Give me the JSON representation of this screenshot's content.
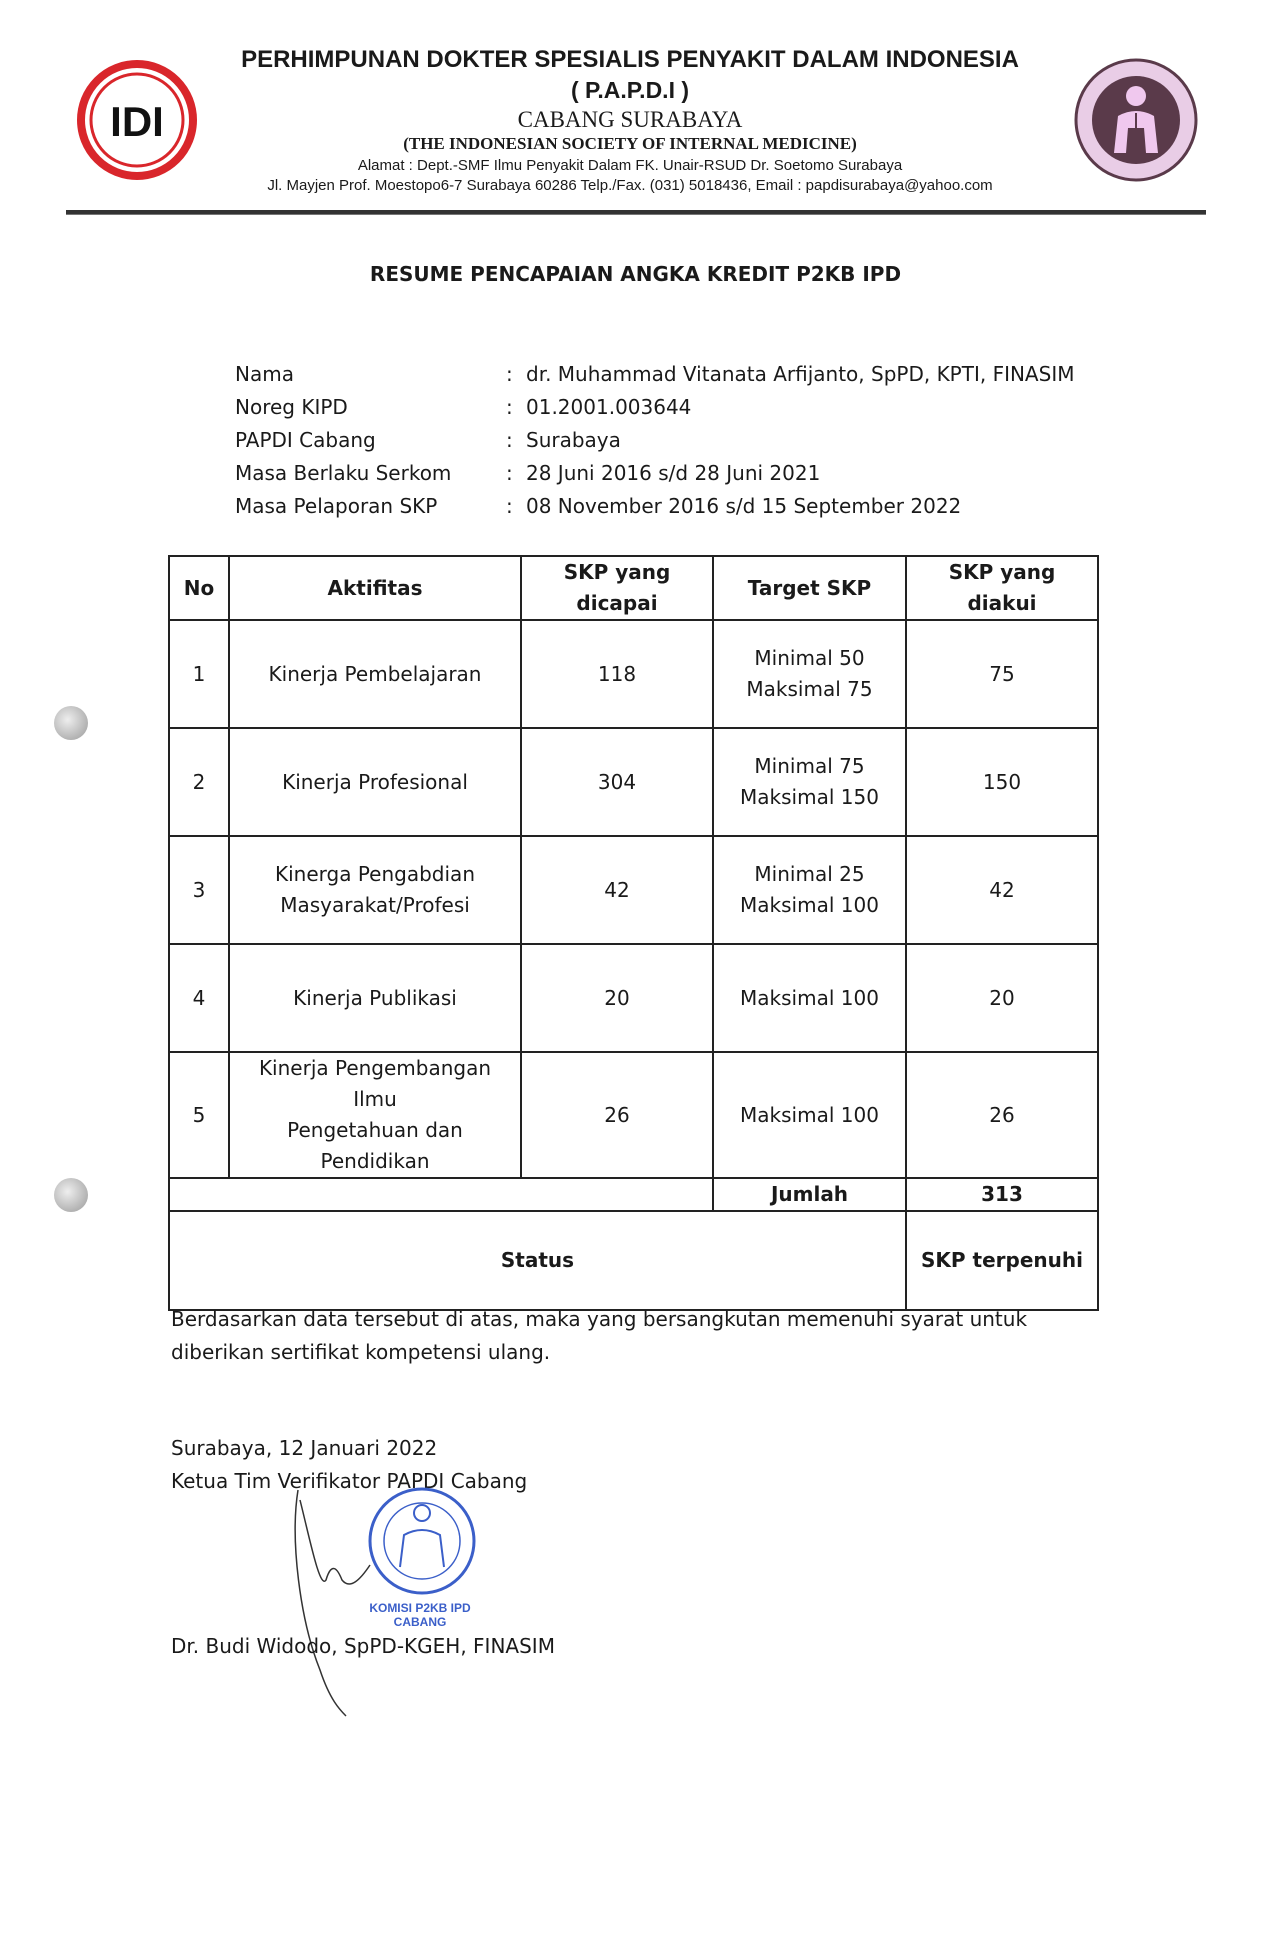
{
  "letterhead": {
    "org_name": "PERHIMPUNAN DOKTER SPESIALIS PENYAKIT DALAM INDONESIA",
    "abbreviation": "( P.A.P.D.I )",
    "branch": "CABANG SURABAYA",
    "english_name": "(THE INDONESIAN SOCIETY OF INTERNAL MEDICINE)",
    "address_line1": "Alamat : Dept.-SMF Ilmu Penyakit Dalam FK. Unair-RSUD Dr. Soetomo Surabaya",
    "address_line2": "Jl. Mayjen Prof. Moestopo6-7 Surabaya 60286 Telp./Fax. (031) 5018436,  Email : papdisurabaya@yahoo.com",
    "left_logo_text": "IDI",
    "right_logo_text": "PERHIMPUNAN DOKTER SPESIALIS PENYAKIT DALAM INDONESIA"
  },
  "title": "RESUME PENCAPAIAN ANGKA KREDIT P2KB IPD",
  "info": [
    {
      "label": "Nama",
      "sep": ":",
      "value": "dr. Muhammad Vitanata Arfijanto, SpPD, KPTI, FINASIM"
    },
    {
      "label": "Noreg KIPD",
      "sep": ":",
      "value": "01.2001.003644"
    },
    {
      "label": "PAPDI Cabang",
      "sep": ":",
      "value": "Surabaya"
    },
    {
      "label": "Masa Berlaku Serkom",
      "sep": ":",
      "value": "28 Juni 2016 s/d 28 Juni 2021"
    },
    {
      "label": "Masa Pelaporan SKP",
      "sep": ":",
      "value": "08 November 2016 s/d 15 September 2022"
    }
  ],
  "table": {
    "headers": [
      "No",
      "Aktifitas",
      "SKP yang dicapai",
      "Target SKP",
      "SKP yang diakui"
    ],
    "rows": [
      {
        "no": "1",
        "activity": "Kinerja Pembelajaran",
        "achieved": "118",
        "target": "Minimal 50\nMaksimal 75",
        "recognized": "75"
      },
      {
        "no": "2",
        "activity": "Kinerja Profesional",
        "achieved": "304",
        "target": "Minimal 75\nMaksimal 150",
        "recognized": "150"
      },
      {
        "no": "3",
        "activity": "Kinerga Pengabdian\nMasyarakat/Profesi",
        "achieved": "42",
        "target": "Minimal 25\nMaksimal 100",
        "recognized": "42"
      },
      {
        "no": "4",
        "activity": "Kinerja Publikasi",
        "achieved": "20",
        "target": "Maksimal 100",
        "recognized": "20"
      },
      {
        "no": "5",
        "activity": "Kinerja Pengembangan Ilmu\nPengetahuan dan\nPendidikan",
        "achieved": "26",
        "target": "Maksimal 100",
        "recognized": "26"
      }
    ],
    "total_label": "Jumlah",
    "total_value": "313",
    "status_label": "Status",
    "status_value": "SKP terpenuhi"
  },
  "conclusion": "Berdasarkan data tersebut di atas, maka yang bersangkutan memenuhi syarat untuk diberikan sertifikat kompetensi ulang.",
  "signature": {
    "place_date": "Surabaya, 12 Januari 2022",
    "position": "Ketua Tim Verifikator PAPDI Cabang",
    "stamp_line1": "KOMISI P2KB IPD",
    "stamp_line2": "CABANG",
    "name": "Dr. Budi Widodo, SpPD-KGEH, FINASIM"
  },
  "colors": {
    "idi_red": "#d9262b",
    "papdi_purple": "#5a3a4a",
    "stamp_blue": "#3b5fc9"
  }
}
